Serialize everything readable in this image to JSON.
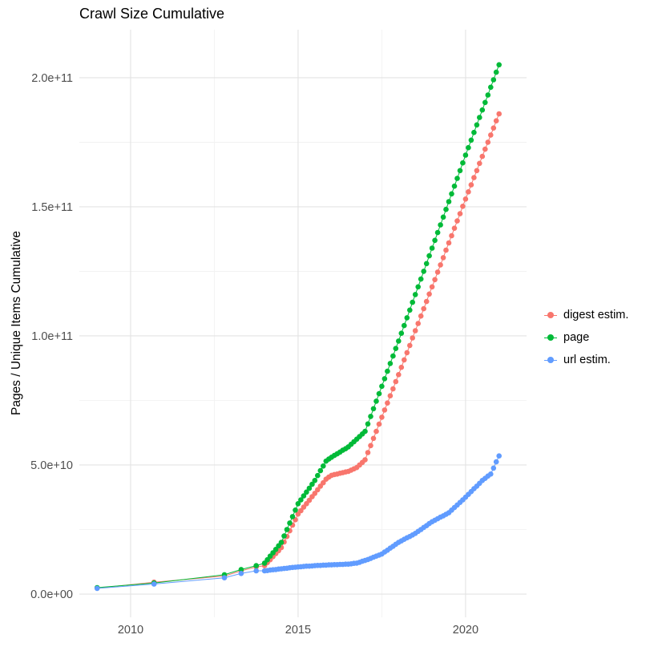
{
  "chart": {
    "title": "Crawl Size Cumulative",
    "ylabel": "Pages / Unique Items Cumulative",
    "xlabel": ""
  },
  "legend": {
    "items": [
      {
        "label": "digest estim.",
        "color": "#F8766D"
      },
      {
        "label": "page",
        "color": "#00BA38"
      },
      {
        "label": "url estim.",
        "color": "#619CFF"
      }
    ]
  },
  "chart_data": {
    "type": "scatter",
    "title": "Crawl Size Cumulative",
    "xlabel": "",
    "ylabel": "Pages / Unique Items Cumulative",
    "legend_position": "right",
    "grid": true,
    "value_unit": 1000000000.0,
    "xlim": [
      2008.47,
      2021.82
    ],
    "ylim_1e9": [
      -9,
      218.6
    ],
    "x_ticks": {
      "major": [
        2010,
        2015,
        2020
      ],
      "minor": [
        2012.5,
        2017.5
      ],
      "labels": [
        "2010",
        "2015",
        "2020"
      ]
    },
    "y_ticks": {
      "major_1e9": [
        0,
        50,
        100,
        150,
        200
      ],
      "minor_1e9": [
        25,
        75,
        125,
        175
      ],
      "labels": [
        "0.0e+00",
        "5.0e+10",
        "1.0e+11",
        "1.5e+11",
        "2.0e+11"
      ]
    },
    "series": [
      {
        "name": "digest estim.",
        "color": "#F8766D",
        "early_points": [
          [
            2009.0,
            2.3
          ],
          [
            2010.7,
            4.6
          ],
          [
            2012.8,
            7.0
          ],
          [
            2013.3,
            9.0
          ],
          [
            2013.75,
            10.5
          ]
        ],
        "monthly_start_year": 2014.0,
        "monthly_values": [
          11,
          12.2,
          13.3,
          14.5,
          15.7,
          16.8,
          18,
          20.2,
          22.3,
          24.5,
          26.7,
          28.8,
          31,
          32.3,
          33.7,
          35,
          36.3,
          37.7,
          39,
          40.4,
          41.8,
          43.1,
          44.5,
          45.3,
          46,
          46.3,
          46.5,
          46.8,
          47,
          47.3,
          47.5,
          48,
          48.5,
          49,
          50,
          51,
          52,
          54.8,
          57.5,
          60.3,
          63,
          65.8,
          68.5,
          71.3,
          74,
          76.8,
          79.5,
          82.3,
          85,
          87.8,
          90.7,
          93.5,
          96.3,
          99.2,
          102,
          104.8,
          107.7,
          110.5,
          113.3,
          116.2,
          119,
          121.8,
          124.7,
          127.5,
          130.3,
          133.2,
          136,
          138.8,
          141.7,
          144.5,
          147.3,
          150.2,
          153,
          155.8,
          158.5,
          161.3,
          164,
          166.8,
          169.5,
          172.3,
          175,
          177.8,
          180.5,
          183.3,
          186
        ]
      },
      {
        "name": "page",
        "color": "#00BA38",
        "early_points": [
          [
            2009.0,
            2.5
          ],
          [
            2010.7,
            4.3
          ],
          [
            2012.8,
            7.5
          ],
          [
            2013.3,
            9.5
          ],
          [
            2013.75,
            11.0
          ]
        ],
        "monthly_start_year": 2014.0,
        "monthly_values": [
          12,
          13.3,
          14.7,
          16,
          17.3,
          18.7,
          20,
          22.5,
          25,
          27.5,
          30,
          32.5,
          35,
          36.5,
          38,
          39.5,
          41,
          42.5,
          44,
          45.9,
          47.8,
          49.6,
          51.5,
          52.3,
          53,
          53.7,
          54.3,
          55,
          55.7,
          56.3,
          57,
          58,
          59,
          60,
          61,
          62,
          63,
          65.9,
          68.8,
          71.8,
          74.7,
          77.6,
          80.5,
          83.4,
          86.3,
          89.3,
          92.2,
          95.1,
          98,
          101,
          104,
          107,
          110,
          113,
          116,
          119,
          122,
          125,
          128,
          131,
          134,
          137,
          140,
          143,
          146,
          149,
          152,
          155,
          158,
          161,
          164,
          167,
          170,
          172.9,
          175.8,
          178.8,
          181.7,
          184.6,
          187.5,
          190.4,
          193.3,
          196.3,
          199.2,
          202.1,
          205
        ]
      },
      {
        "name": "url estim.",
        "color": "#619CFF",
        "early_points": [
          [
            2009.0,
            2.2
          ],
          [
            2010.7,
            3.9
          ],
          [
            2012.8,
            6.3
          ],
          [
            2013.3,
            8.0
          ],
          [
            2013.75,
            9.0
          ]
        ],
        "monthly_start_year": 2014.0,
        "monthly_values": [
          9,
          9.1,
          9.3,
          9.4,
          9.5,
          9.7,
          9.8,
          9.9,
          10,
          10.2,
          10.3,
          10.4,
          10.5,
          10.6,
          10.7,
          10.8,
          10.8,
          10.9,
          11,
          11.1,
          11.1,
          11.2,
          11.2,
          11.3,
          11.3,
          11.4,
          11.4,
          11.5,
          11.5,
          11.6,
          11.6,
          11.7,
          11.9,
          12,
          12.3,
          12.7,
          13,
          13.4,
          13.8,
          14.3,
          14.7,
          15.1,
          15.5,
          16.3,
          17,
          17.8,
          18.5,
          19.3,
          20,
          20.6,
          21.2,
          21.8,
          22.3,
          22.9,
          23.5,
          24.3,
          25,
          25.8,
          26.5,
          27.3,
          28,
          28.6,
          29.2,
          29.8,
          30.3,
          30.9,
          31.5,
          32.5,
          33.5,
          34.5,
          35.5,
          36.5,
          37.5,
          38.6,
          39.7,
          40.8,
          41.8,
          42.9,
          44,
          44.8,
          45.7,
          46.5,
          48.8,
          51.2,
          53.5
        ]
      }
    ],
    "style": {
      "grid_major_color": "#e3e3e3",
      "grid_minor_color": "#f1f1f1",
      "tick_label_color": "#4d4d4d",
      "point_radius": 3.3
    }
  }
}
